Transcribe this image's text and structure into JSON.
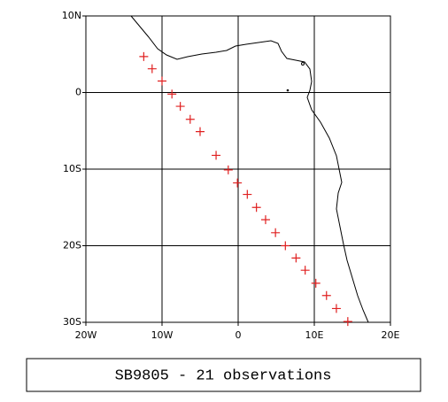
{
  "chart_data": {
    "type": "scatter",
    "title": "SB9805 - 21 observations",
    "series": [
      {
        "color": "#e02020",
        "x": [
          -12.4,
          -11.3,
          -10.0,
          -8.7,
          -7.6,
          -6.3,
          -5.0,
          -2.9,
          -1.3,
          -0.1,
          1.2,
          2.4,
          3.6,
          4.9,
          6.2,
          7.6,
          8.8,
          10.2,
          11.6,
          12.9,
          14.4
        ],
        "values": [
          4.7,
          3.1,
          1.5,
          -0.2,
          -1.8,
          -3.5,
          -5.1,
          -8.2,
          -10.1,
          -11.8,
          -13.3,
          -15.0,
          -16.6,
          -18.3,
          -20.0,
          -21.6,
          -23.2,
          -24.9,
          -26.5,
          -28.2,
          -29.9
        ]
      }
    ],
    "xlim": [
      -20,
      20
    ],
    "ylim": [
      -30,
      10
    ],
    "xticks": [
      {
        "value": -20,
        "label": "20W"
      },
      {
        "value": -10,
        "label": "10W"
      },
      0,
      {
        "value": 10,
        "label": "10E"
      },
      {
        "value": 20,
        "label": "20E"
      }
    ],
    "yticks": [
      {
        "value": -30,
        "label": "30S"
      },
      {
        "value": -20,
        "label": "20S"
      },
      {
        "value": -10,
        "label": "10S"
      },
      0,
      {
        "value": 10,
        "label": "10N"
      }
    ],
    "grid": true
  }
}
